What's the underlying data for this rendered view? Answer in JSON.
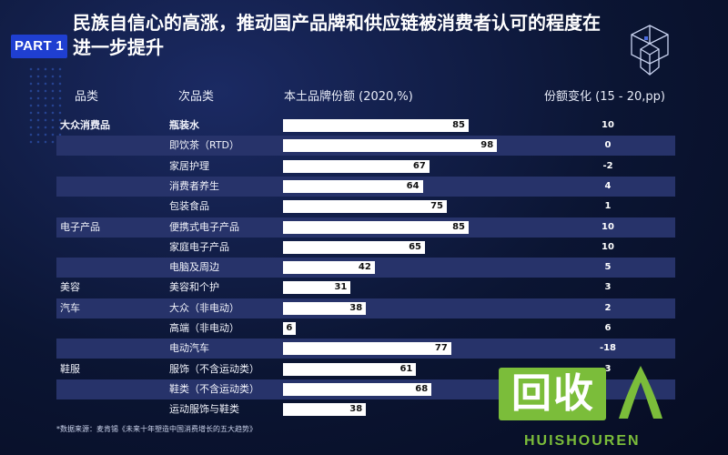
{
  "header": {
    "badge": "PART 1",
    "title": "民族自信心的高涨，推动国产品牌和供应链被消费者认可的程度在进一步提升"
  },
  "columns": {
    "category": "品类",
    "subcategory": "次品类",
    "share": "本土品牌份额 (2020,%)",
    "change": "份额变化 (15 - 20,pp)"
  },
  "chart_data": {
    "type": "bar",
    "orientation": "horizontal",
    "xlim": [
      0,
      100
    ],
    "rows": [
      {
        "category": "大众消费品",
        "subcategory": "瓶装水",
        "share": 85,
        "change": "10"
      },
      {
        "category": "",
        "subcategory": "即饮茶（RTD）",
        "share": 98,
        "change": "0"
      },
      {
        "category": "",
        "subcategory": "家居护理",
        "share": 67,
        "change": "-2"
      },
      {
        "category": "",
        "subcategory": "消费者养生",
        "share": 64,
        "change": "4"
      },
      {
        "category": "",
        "subcategory": "包装食品",
        "share": 75,
        "change": "1"
      },
      {
        "category": "电子产品",
        "subcategory": "便携式电子产品",
        "share": 85,
        "change": "10"
      },
      {
        "category": "",
        "subcategory": "家庭电子产品",
        "share": 65,
        "change": "10"
      },
      {
        "category": "",
        "subcategory": "电脑及周边",
        "share": 42,
        "change": "5"
      },
      {
        "category": "美容",
        "subcategory": "美容和个护",
        "share": 31,
        "change": "3"
      },
      {
        "category": "汽车",
        "subcategory": "大众（非电动）",
        "share": 38,
        "change": "2"
      },
      {
        "category": "",
        "subcategory": "高端（非电动）",
        "share": 6,
        "change": "6"
      },
      {
        "category": "",
        "subcategory": "电动汽车",
        "share": 77,
        "change": "-18"
      },
      {
        "category": "鞋服",
        "subcategory": "服饰（不含运动类）",
        "share": 61,
        "change": "3"
      },
      {
        "category": "",
        "subcategory": "鞋类（不含运动类）",
        "share": 68,
        "change": ""
      },
      {
        "category": "",
        "subcategory": "运动服饰与鞋类",
        "share": 38,
        "change": ""
      }
    ]
  },
  "footer": {
    "source": "*数据来源：麦肯锡《未来十年塑造中国消费增长的五大趋势》"
  },
  "watermark": {
    "han": "回收",
    "en": "HUISHOUREN"
  },
  "colors": {
    "background": "#0b1533",
    "row_dark": "#27336a",
    "badge": "#1f3fd1",
    "bar": "#ffffff",
    "watermark": "#7bbd3a"
  }
}
